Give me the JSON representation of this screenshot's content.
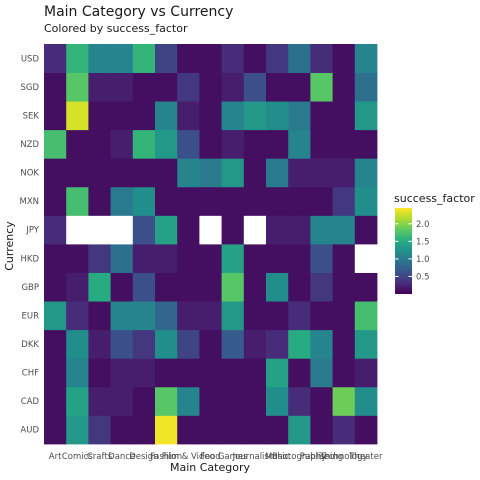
{
  "chart_data": {
    "type": "heatmap",
    "title": "Main Category vs Currency",
    "subtitle": "Colored by success_factor",
    "xlabel": "Main Category",
    "ylabel": "Currency",
    "x_categories": [
      "Art",
      "Comics",
      "Crafts",
      "Dance",
      "Design",
      "Fashion",
      "Film & Video",
      "Food",
      "Games",
      "Journalism",
      "Music",
      "Photography",
      "Publishing",
      "Technology",
      "Theater"
    ],
    "y_categories": [
      "AUD",
      "CAD",
      "CHF",
      "DKK",
      "EUR",
      "GBP",
      "HKD",
      "JPY",
      "MXN",
      "NOK",
      "NZD",
      "SEK",
      "SGD",
      "USD"
    ],
    "legend": {
      "title": "success_factor",
      "ticks": [
        0.5,
        1.0,
        1.5,
        2.0
      ],
      "tick_labels": [
        "0.5",
        "1.0",
        "1.5",
        "2.0"
      ],
      "range": [
        0.0,
        2.45
      ],
      "position": "right"
    },
    "values": [
      [
        0.1,
        1.3,
        0.4,
        0.1,
        0.1,
        2.4,
        0.1,
        0.1,
        0.1,
        0.1,
        0.1,
        1.3,
        0.1,
        0.3,
        0.1
      ],
      [
        0.1,
        1.4,
        0.2,
        0.2,
        0.1,
        1.8,
        1.1,
        0.1,
        0.1,
        0.1,
        1.2,
        0.3,
        0.1,
        1.9,
        1.2
      ],
      [
        0.1,
        1.1,
        0.1,
        0.2,
        0.2,
        0.1,
        0.1,
        0.1,
        0.1,
        0.1,
        1.4,
        0.1,
        1.0,
        0.1,
        0.2
      ],
      [
        0.1,
        1.2,
        0.2,
        0.6,
        0.4,
        1.2,
        0.5,
        0.1,
        0.7,
        0.2,
        0.3,
        1.5,
        1.1,
        0.1,
        1.3
      ],
      [
        1.3,
        0.3,
        0.1,
        1.1,
        1.1,
        0.8,
        0.2,
        0.2,
        1.3,
        0.1,
        0.1,
        0.3,
        0.1,
        0.1,
        1.7
      ],
      [
        0.1,
        0.2,
        1.5,
        0.1,
        0.6,
        0.1,
        0.1,
        0.1,
        1.8,
        0.1,
        1.2,
        0.1,
        0.4,
        0.1,
        0.1
      ],
      [
        0.1,
        0.1,
        0.4,
        0.9,
        0.2,
        0.2,
        0.1,
        0.1,
        1.4,
        0.1,
        0.1,
        0.1,
        0.6,
        0.1,
        null
      ],
      [
        0.3,
        null,
        null,
        null,
        0.6,
        1.4,
        0.1,
        null,
        0.1,
        null,
        0.2,
        0.2,
        1.1,
        1.1,
        0.1
      ],
      [
        0.1,
        1.7,
        0.1,
        1.0,
        1.2,
        0.1,
        0.1,
        0.1,
        0.1,
        0.1,
        0.1,
        0.1,
        0.1,
        0.4,
        1.2
      ],
      [
        0.1,
        0.1,
        0.1,
        0.1,
        0.1,
        0.1,
        1.1,
        1.0,
        1.3,
        0.1,
        1.0,
        0.2,
        0.2,
        0.2,
        1.1
      ],
      [
        1.7,
        0.1,
        0.1,
        0.2,
        1.6,
        1.3,
        0.6,
        0.1,
        0.2,
        0.1,
        0.1,
        1.1,
        0.1,
        0.1,
        0.1
      ],
      [
        0.1,
        2.3,
        0.1,
        0.1,
        0.1,
        1.1,
        0.2,
        0.1,
        1.1,
        1.3,
        1.2,
        1.0,
        0.1,
        0.1,
        1.3
      ],
      [
        0.1,
        1.8,
        0.2,
        0.2,
        0.1,
        0.1,
        0.4,
        0.1,
        0.2,
        0.6,
        0.1,
        0.1,
        1.8,
        0.1,
        0.9
      ],
      [
        0.3,
        1.6,
        1.1,
        1.1,
        1.6,
        0.5,
        0.1,
        0.1,
        0.3,
        0.1,
        0.4,
        0.9,
        0.3,
        0.1,
        1.1
      ]
    ],
    "na_color": "#ffffff"
  }
}
